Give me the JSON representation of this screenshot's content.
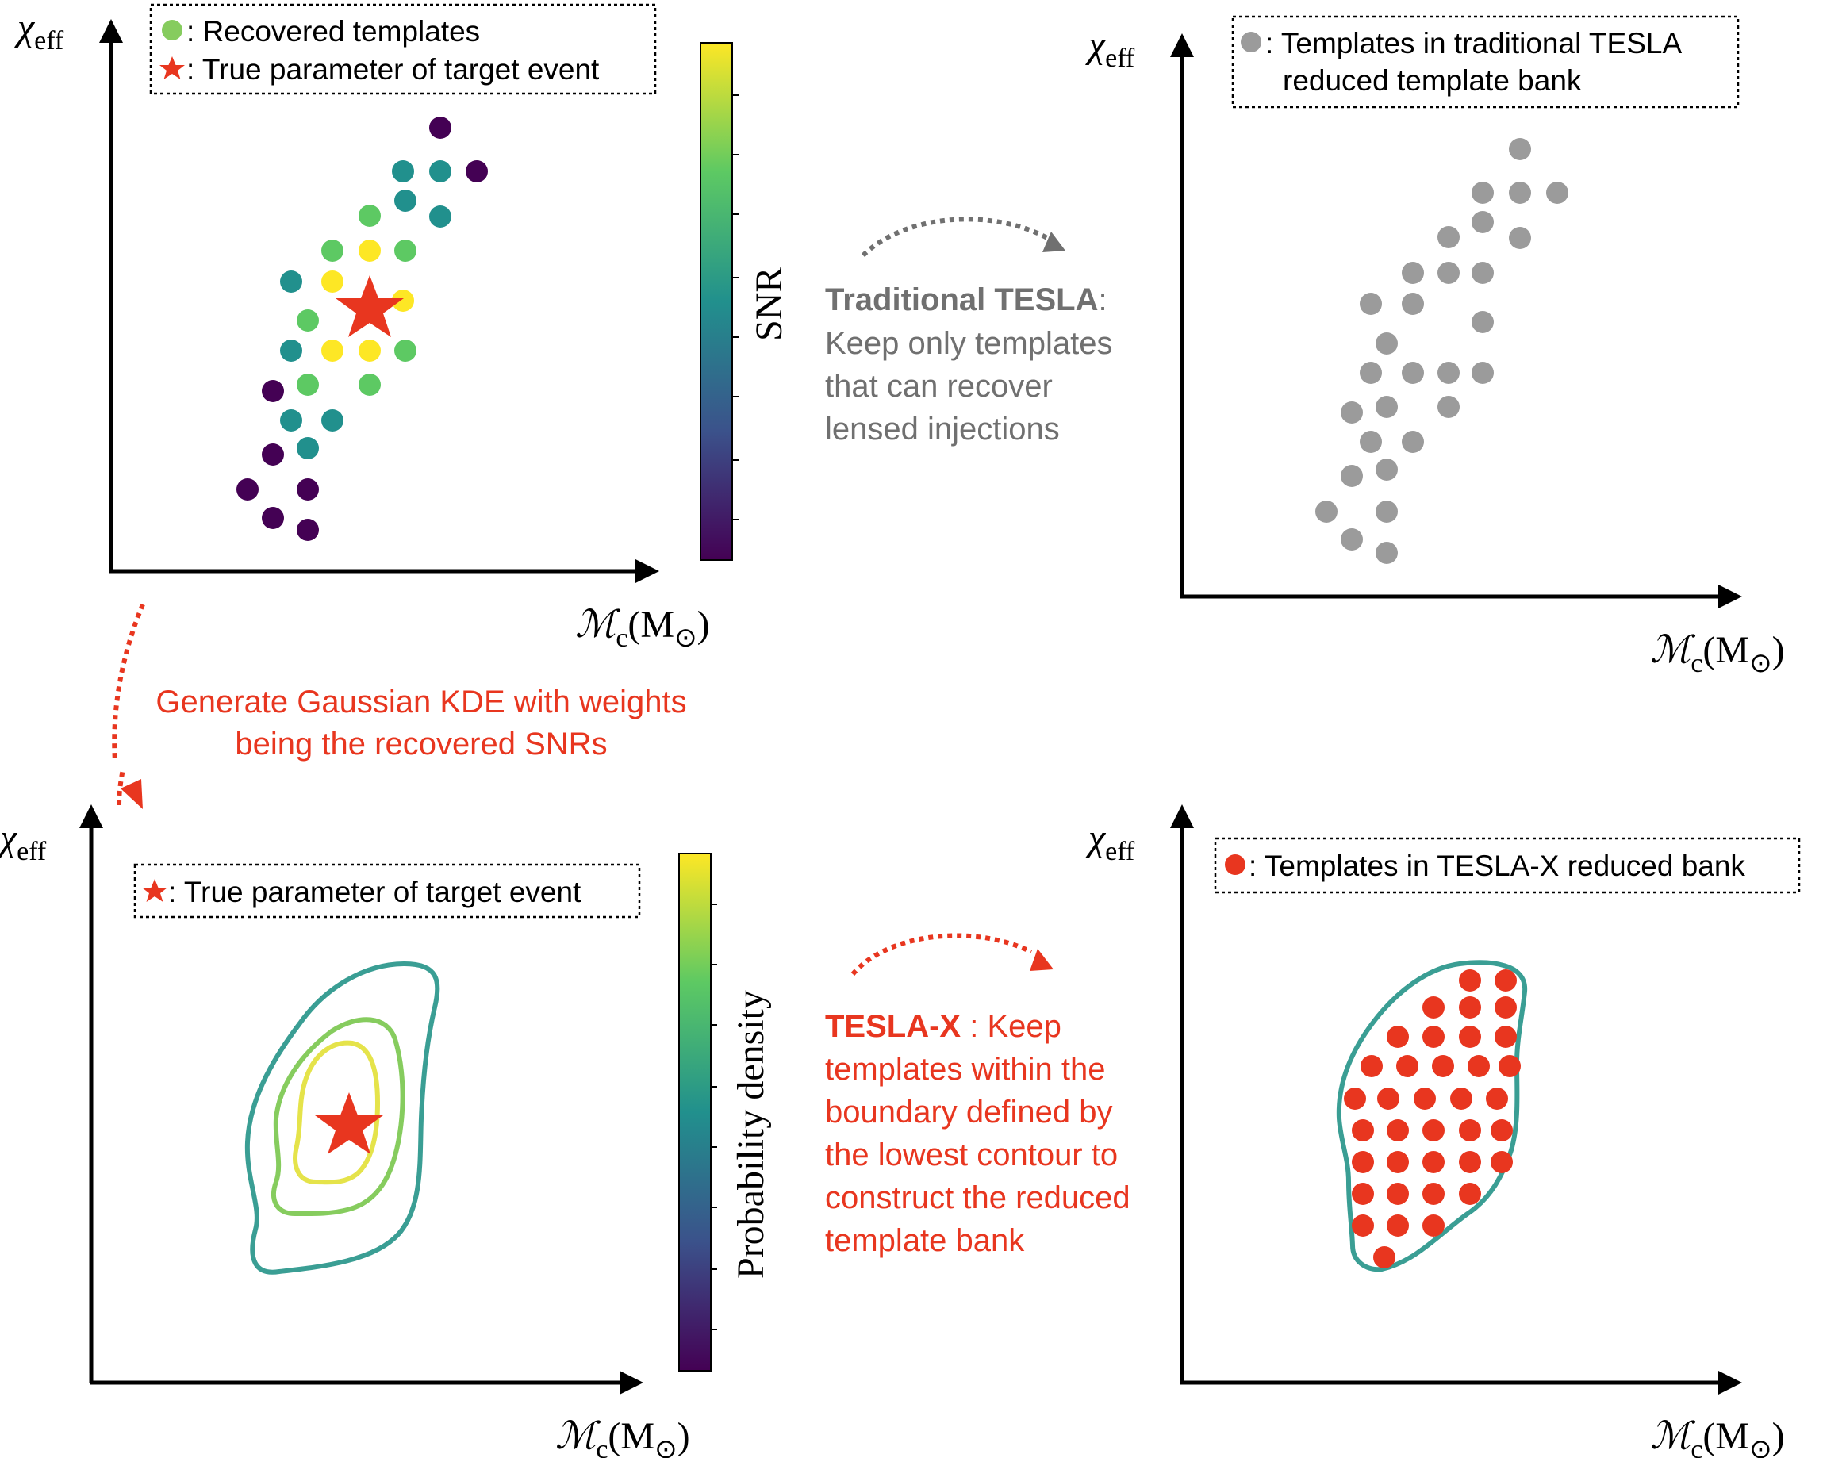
{
  "colors": {
    "annotation_red": "#e8361f",
    "annotation_gray": "#707070",
    "template_gray": "#9b9b9b",
    "contour_outer": "#3a9e94",
    "contour_mid": "#86cc5e",
    "contour_inner": "#e5e34a",
    "star": "#e8361f",
    "viridis": [
      "#440154",
      "#3b528b",
      "#21908d",
      "#5dc963",
      "#fde725"
    ]
  },
  "panels": {
    "top_left": {
      "ylabel_symbol": "χ",
      "ylabel_sub": "eff",
      "xlabel_symbol": "ℳ",
      "xlabel_sub": "c",
      "xlabel_unit": "(M",
      "xlabel_unit_sym": "⊙",
      "xlabel_close": ")",
      "legend_1": ": Recovered templates",
      "legend_2": ": True parameter of target event",
      "colorbar_label": "SNR"
    },
    "top_right": {
      "ylabel_symbol": "χ",
      "ylabel_sub": "eff",
      "xlabel_symbol": "ℳ",
      "xlabel_sub": "c",
      "xlabel_unit": "(M",
      "xlabel_unit_sym": "⊙",
      "xlabel_close": ")",
      "legend_line1": ": Templates in traditional TESLA",
      "legend_line2": "reduced template bank"
    },
    "bottom_left": {
      "ylabel_symbol": "χ",
      "ylabel_sub": "eff",
      "xlabel_symbol": "ℳ",
      "xlabel_sub": "c",
      "xlabel_unit": "(M",
      "xlabel_unit_sym": "⊙",
      "xlabel_close": ")",
      "legend": ": True parameter of target event",
      "colorbar_label": "Probability density"
    },
    "bottom_right": {
      "ylabel_symbol": "χ",
      "ylabel_sub": "eff",
      "xlabel_symbol": "ℳ",
      "xlabel_sub": "c",
      "xlabel_unit": "(M",
      "xlabel_unit_sym": "⊙",
      "xlabel_close": ")",
      "legend": ": Templates in TESLA-X reduced bank"
    }
  },
  "annotations": {
    "traditional": {
      "title": "Traditional TESLA",
      "colon": ":",
      "line2": "Keep only templates",
      "line3": "that can recover",
      "line4": "lensed injections"
    },
    "kde": {
      "line1": "Generate Gaussian KDE with weights",
      "line2": "being the recovered SNRs"
    },
    "teslax": {
      "title": "TESLA-X",
      "line1_rest": " : Keep",
      "line2": "templates  within the",
      "line3": "boundary defined by",
      "line4": "the lowest contour to",
      "line5": "construct the reduced",
      "line6": "template bank"
    }
  }
}
